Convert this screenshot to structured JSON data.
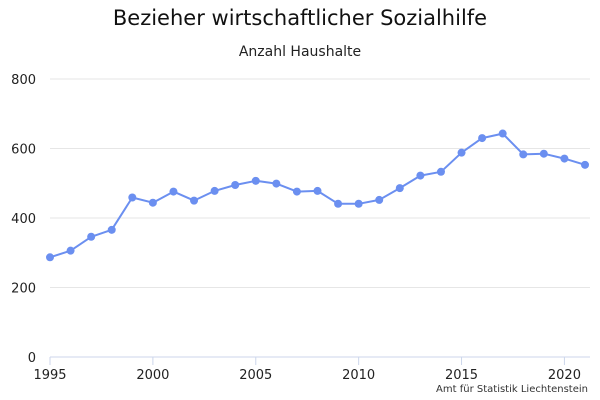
{
  "chart_data": {
    "type": "line",
    "title": "Bezieher wirtschaftlicher Sozialhilfe",
    "subtitle": "Anzahl Haushalte",
    "credit": "Amt für Statistik Liechtenstein",
    "x": [
      1995,
      1996,
      1997,
      1998,
      1999,
      2000,
      2001,
      2002,
      2003,
      2004,
      2005,
      2006,
      2007,
      2008,
      2009,
      2010,
      2011,
      2012,
      2013,
      2014,
      2015,
      2016,
      2017,
      2018,
      2019,
      2020,
      2021
    ],
    "series": [
      {
        "values": [
          287,
          306,
          346,
          366,
          459,
          444,
          476,
          450,
          478,
          495,
          507,
          499,
          476,
          478,
          441,
          441,
          452,
          486,
          522,
          533,
          588,
          630,
          643,
          583,
          585,
          571,
          553
        ],
        "color": "#6b8ff0"
      }
    ],
    "xlim": [
      1995,
      2021
    ],
    "ylim": [
      0,
      800
    ],
    "x_ticks": [
      1995,
      2000,
      2005,
      2010,
      2015,
      2020
    ],
    "y_ticks": [
      0,
      200,
      400,
      600,
      800
    ],
    "grid": "horizontal"
  }
}
